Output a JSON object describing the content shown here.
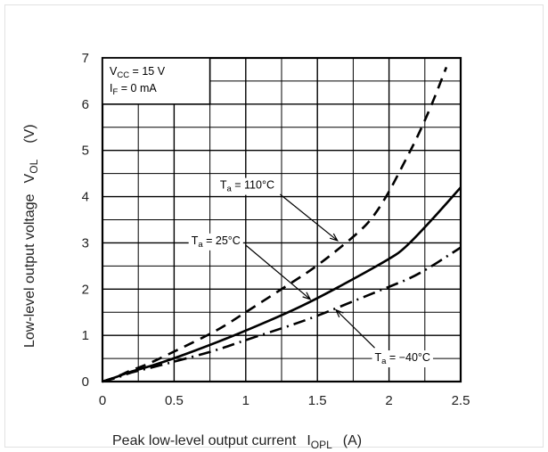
{
  "chart_data": {
    "type": "line",
    "xlabel": "Peak low-level output current",
    "xlabel_symbol": "I",
    "xlabel_symbol_sub": "OPL",
    "xlabel_unit": "(A)",
    "ylabel": "Low-level output voltage",
    "ylabel_symbol": "V",
    "ylabel_symbol_sub": "OL",
    "ylabel_unit": "(V)",
    "xlim": [
      0,
      2.5
    ],
    "ylim": [
      0,
      7
    ],
    "x_ticks": [
      "0",
      "0.5",
      "1",
      "1.5",
      "2",
      "2.5"
    ],
    "y_ticks": [
      "0",
      "1",
      "2",
      "3",
      "4",
      "5",
      "6",
      "7"
    ],
    "grid": true,
    "conditions": [
      {
        "label": "V",
        "sub": "CC",
        "value": " = 15 V"
      },
      {
        "label": "I",
        "sub": "F",
        "value": " = 0 mA"
      }
    ],
    "series": [
      {
        "name": "Ta = 110°C",
        "label_main": "T",
        "label_sub": "a",
        "label_value": " = 110°C",
        "style": "dashed",
        "x": [
          0,
          0.1,
          0.2,
          0.3,
          0.5,
          0.8,
          1.0,
          1.3,
          1.5,
          1.8,
          1.9,
          2.0,
          2.1,
          2.2,
          2.3,
          2.4
        ],
        "y": [
          0,
          0.1,
          0.25,
          0.35,
          0.65,
          1.1,
          1.5,
          2.1,
          2.5,
          3.25,
          3.6,
          4.1,
          4.7,
          5.3,
          6.0,
          6.8
        ]
      },
      {
        "name": "Ta = 25°C",
        "label_main": "T",
        "label_sub": "a",
        "label_value": " = 25°C",
        "style": "solid",
        "x": [
          0,
          0.1,
          0.2,
          0.3,
          0.5,
          0.8,
          1.0,
          1.3,
          1.5,
          1.8,
          2.0,
          2.1,
          2.3,
          2.5
        ],
        "y": [
          0,
          0.1,
          0.22,
          0.3,
          0.5,
          0.85,
          1.1,
          1.5,
          1.8,
          2.3,
          2.65,
          2.85,
          3.5,
          4.2
        ]
      },
      {
        "name": "Ta = -40°C",
        "label_main": "T",
        "label_sub": "a",
        "label_value": " = −40°C",
        "style": "dashdot",
        "x": [
          0,
          0.1,
          0.2,
          0.3,
          0.5,
          0.8,
          1.0,
          1.3,
          1.5,
          1.8,
          2.0,
          2.2,
          2.5
        ],
        "y": [
          0,
          0.08,
          0.2,
          0.27,
          0.43,
          0.68,
          0.9,
          1.2,
          1.42,
          1.8,
          2.05,
          2.3,
          2.9
        ]
      }
    ]
  }
}
